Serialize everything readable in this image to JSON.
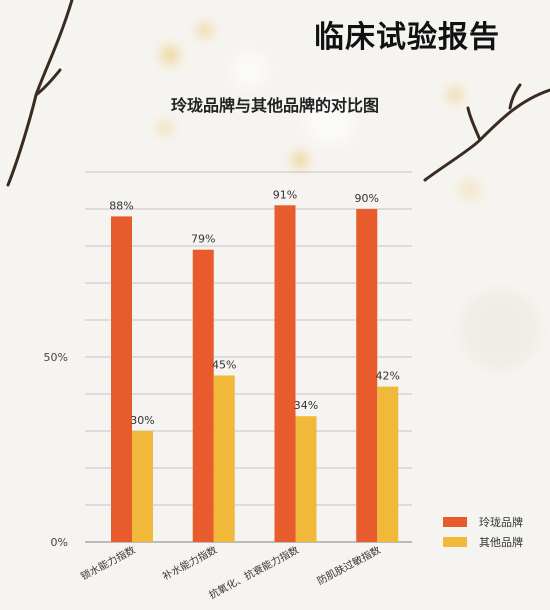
{
  "page_title": "临床试验报告",
  "colors": {
    "brand": "#e85b2c",
    "other": "#f0b93a"
  },
  "chart_data": {
    "type": "bar",
    "title": "玲珑品牌与其他品牌的对比图",
    "categories": [
      "锁水能力指数",
      "补水能力指数",
      "抗氧化、抗衰能力指数",
      "防肌肤过敏指数"
    ],
    "series": [
      {
        "name": "玲珑品牌",
        "values": [
          88,
          79,
          91,
          90
        ]
      },
      {
        "name": "其他品牌",
        "values": [
          30,
          45,
          34,
          42
        ]
      }
    ],
    "value_labels": {
      "玲珑品牌": [
        "88%",
        "79%",
        "91%",
        "90%"
      ],
      "其他品牌": [
        "30%",
        "45%",
        "34%",
        "42%"
      ]
    },
    "ylim": [
      0,
      100
    ],
    "yticks": [
      "0%",
      "50%"
    ],
    "grid": true,
    "legend": "bottom-right"
  }
}
